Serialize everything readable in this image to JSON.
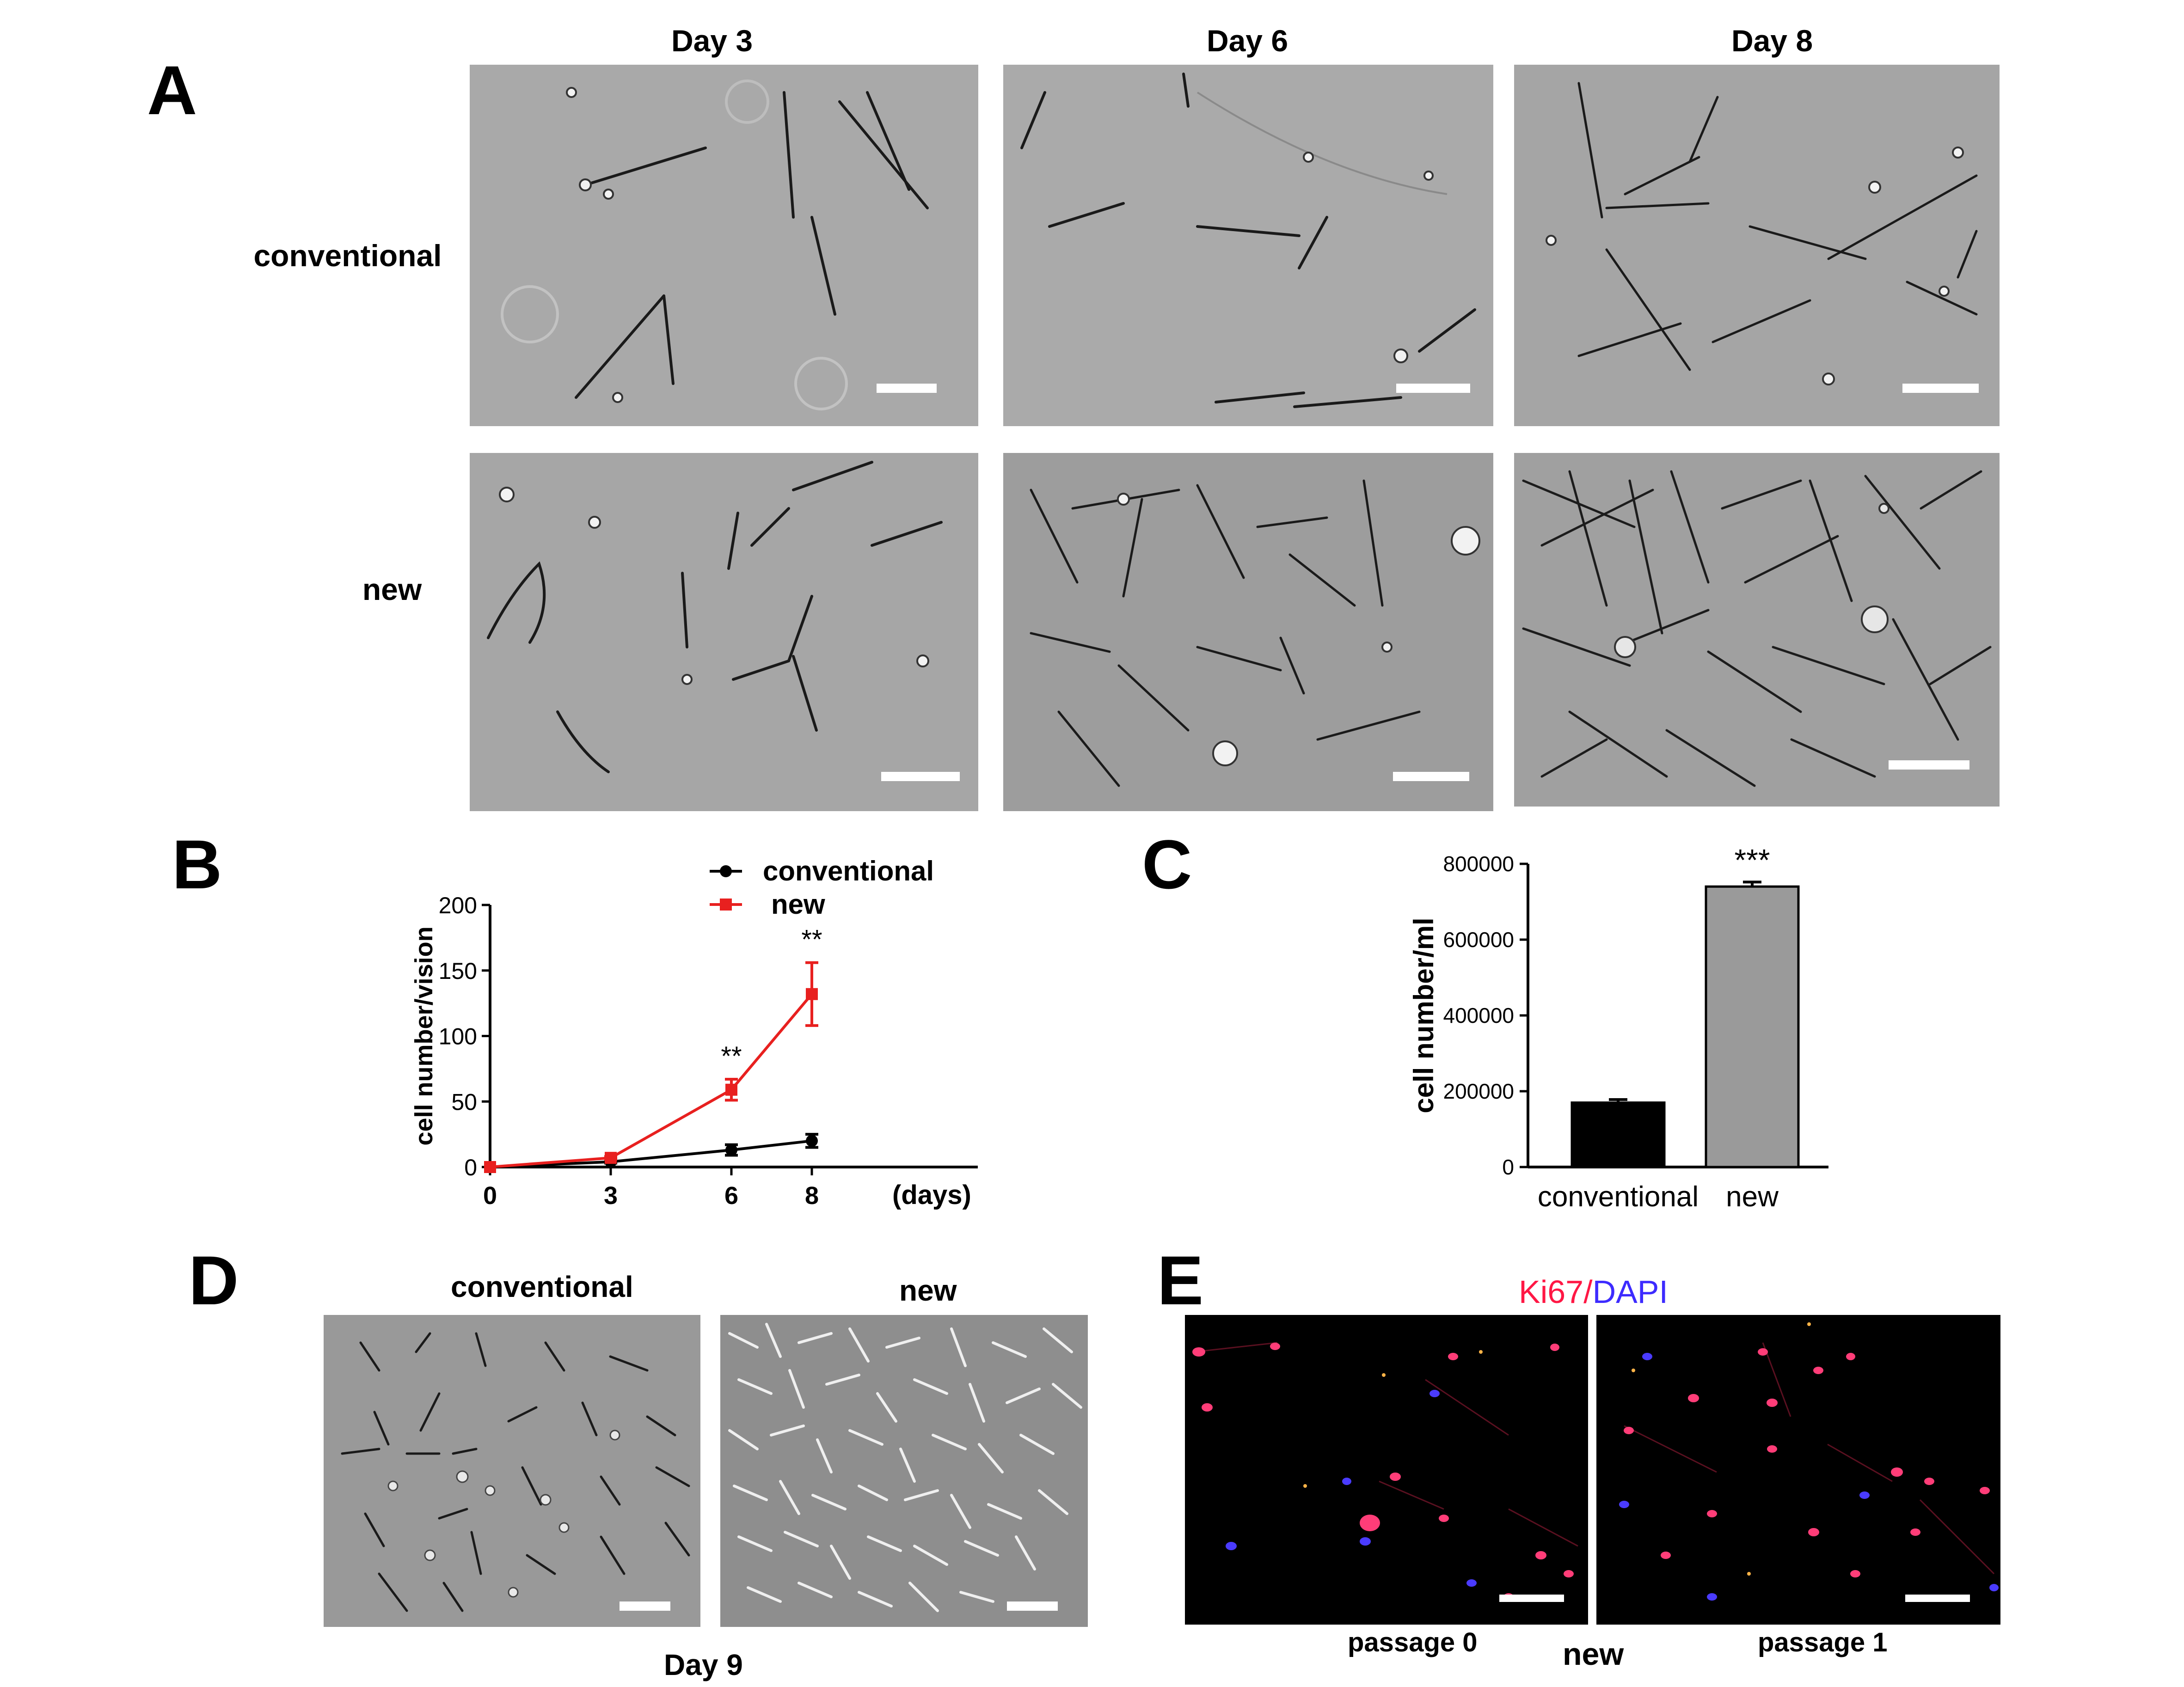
{
  "panels": {
    "A": {
      "label": "A",
      "columns": [
        "Day 3",
        "Day 6",
        "Day 8"
      ],
      "rows": [
        "conventional",
        "new"
      ]
    },
    "B": {
      "label": "B",
      "stars": [
        "**",
        "**"
      ]
    },
    "C": {
      "label": "C",
      "stars": "***"
    },
    "D": {
      "label": "D",
      "titles": [
        "conventional",
        "new"
      ],
      "caption": "Day 9"
    },
    "E": {
      "label": "E",
      "title_ki67": "Ki67",
      "title_sep": "/",
      "title_dapi": "DAPI",
      "passages": [
        "passage 0",
        "passage 1"
      ],
      "caption": "new"
    }
  },
  "colors": {
    "conventional": "#000000",
    "new": "#e8201f",
    "bar_conventional": "#000000",
    "bar_new": "#9a9a9a",
    "ki67": "#ff1744",
    "dapi": "#3d2bff"
  },
  "chart_data": [
    {
      "type": "line",
      "xlabel": "(days)",
      "ylabel": "cell number/vision",
      "x": [
        0,
        3,
        6,
        8
      ],
      "xticks": [
        "0",
        "3",
        "6",
        "8"
      ],
      "yticks": [
        "0",
        "50",
        "100",
        "150",
        "200"
      ],
      "ylim": [
        0,
        200
      ],
      "legend_position": "top-right",
      "series": [
        {
          "name": "conventional",
          "values": [
            0,
            4,
            13,
            20
          ],
          "errors": [
            0,
            1,
            4,
            5
          ],
          "marker": "circle"
        },
        {
          "name": "new",
          "values": [
            0,
            7,
            59,
            132
          ],
          "errors": [
            0,
            1,
            8,
            24
          ],
          "marker": "square"
        }
      ],
      "annotations": [
        {
          "x": 6,
          "text": "**"
        },
        {
          "x": 8,
          "text": "**"
        }
      ]
    },
    {
      "type": "bar",
      "ylabel": "cell number/ml",
      "categories": [
        "conventional",
        "new"
      ],
      "values": [
        170000,
        740000
      ],
      "errors": [
        8000,
        12000
      ],
      "yticks": [
        "0",
        "200000",
        "400000",
        "600000",
        "800000"
      ],
      "ylim": [
        0,
        800000
      ],
      "annotations": [
        {
          "category": "new",
          "text": "***"
        }
      ]
    }
  ]
}
